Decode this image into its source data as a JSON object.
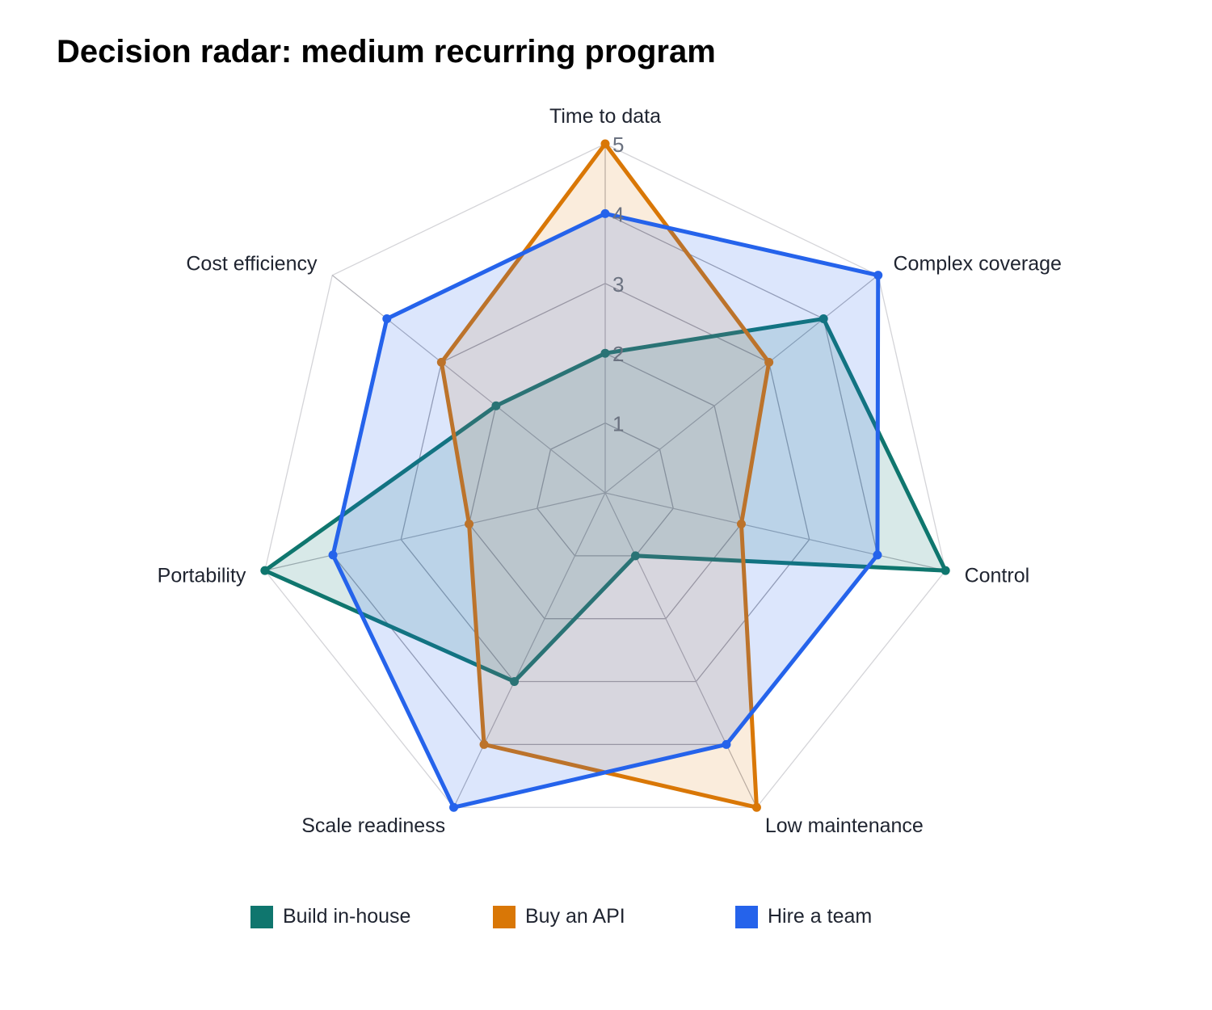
{
  "chart_data": {
    "type": "radar",
    "title": "Decision radar: medium recurring program",
    "axes": [
      "Time to data",
      "Complex coverage",
      "Control",
      "Low maintenance",
      "Scale readiness",
      "Portability",
      "Cost efficiency"
    ],
    "r_ticks": [
      1,
      2,
      3,
      4,
      5
    ],
    "r_range": [
      0,
      5
    ],
    "grid": true,
    "legend_position": "bottom",
    "series": [
      {
        "name": "Build in-house",
        "color": "#0f766e",
        "values": [
          2,
          4,
          5,
          1,
          3,
          5,
          2
        ]
      },
      {
        "name": "Buy an API",
        "color": "#d97706",
        "values": [
          5,
          3,
          2,
          5,
          4,
          2,
          3
        ]
      },
      {
        "name": "Hire a team",
        "color": "#2563eb",
        "values": [
          4,
          5,
          4,
          4,
          5,
          4,
          4
        ]
      }
    ]
  }
}
